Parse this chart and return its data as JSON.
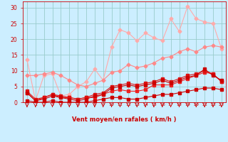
{
  "xlabel": "Vent moyen/en rafales ( km/h )",
  "bg_color": "#cceeff",
  "grid_color": "#99cccc",
  "x_values": [
    0,
    1,
    2,
    3,
    4,
    5,
    6,
    7,
    8,
    9,
    10,
    11,
    12,
    13,
    14,
    15,
    16,
    17,
    18,
    19,
    20,
    21,
    22,
    23
  ],
  "line_gust_max": [
    13.5,
    0.5,
    8.5,
    9.0,
    2.0,
    2.5,
    5.0,
    6.5,
    10.5,
    7.0,
    17.5,
    23.0,
    22.0,
    19.5,
    22.0,
    20.5,
    19.5,
    26.5,
    22.5,
    30.5,
    26.5,
    25.5,
    25.0,
    17.0
  ],
  "line_gust_avg": [
    8.5,
    8.5,
    9.0,
    9.5,
    8.5,
    7.0,
    5.5,
    5.0,
    6.0,
    7.0,
    9.5,
    10.0,
    12.0,
    11.0,
    11.5,
    12.5,
    14.0,
    14.5,
    16.0,
    17.0,
    16.0,
    17.5,
    18.0,
    17.5
  ],
  "line_wind1": [
    3.0,
    0.5,
    1.0,
    2.0,
    1.5,
    1.0,
    0.5,
    1.0,
    2.0,
    2.5,
    4.5,
    5.0,
    5.5,
    5.0,
    5.5,
    6.0,
    7.0,
    6.0,
    7.0,
    8.0,
    8.5,
    10.5,
    8.5,
    7.0
  ],
  "line_wind2": [
    3.5,
    1.0,
    1.5,
    2.5,
    2.0,
    1.5,
    1.0,
    1.5,
    2.5,
    3.0,
    5.0,
    5.5,
    6.0,
    5.5,
    6.0,
    6.5,
    7.5,
    6.5,
    7.5,
    8.5,
    9.0,
    10.0,
    9.0,
    6.5
  ],
  "line_wind3": [
    3.0,
    0.5,
    1.5,
    2.5,
    1.5,
    1.5,
    1.0,
    1.5,
    1.5,
    2.5,
    3.5,
    4.0,
    3.5,
    3.5,
    4.0,
    5.5,
    5.5,
    5.5,
    6.5,
    7.5,
    8.5,
    9.5,
    9.0,
    6.5
  ],
  "line_base": [
    0.5,
    0.0,
    0.0,
    0.5,
    0.0,
    0.0,
    0.0,
    0.0,
    0.5,
    1.0,
    1.5,
    1.5,
    1.0,
    1.0,
    1.5,
    2.0,
    2.5,
    2.5,
    3.0,
    3.5,
    4.0,
    4.5,
    4.5,
    4.0
  ],
  "color_light": "#ffaaaa",
  "color_mid": "#ff8888",
  "color_dark1": "#cc0000",
  "color_dark2": "#dd1111",
  "color_dark3": "#ee2222",
  "color_base": "#cc0000",
  "ylim": [
    0,
    32
  ],
  "yticks": [
    0,
    5,
    10,
    15,
    20,
    25,
    30
  ],
  "tick_color": "#cc0000",
  "label_color": "#cc0000"
}
